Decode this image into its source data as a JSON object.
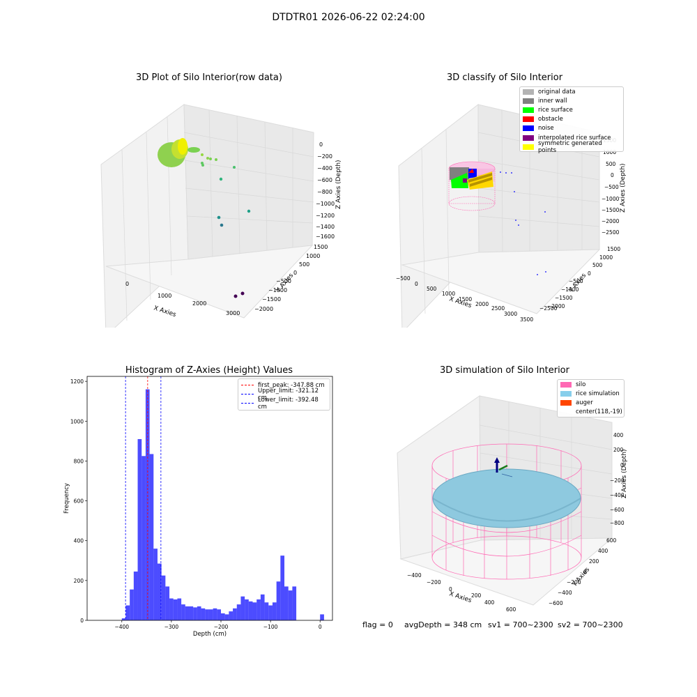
{
  "figure": {
    "suptitle": "DTDTR01 2026-06-22 02:24:00"
  },
  "panels": {
    "p1": {
      "title": "3D Plot of Silo Interior(row data)",
      "xlabel": "X Axies",
      "ylabel": "Y Axies",
      "zlabel": "Z Axies (Depth)",
      "xticks": [
        "0",
        "1000",
        "2000",
        "3000"
      ],
      "yticks": [
        "1500",
        "1000",
        "500",
        "0",
        "−500",
        "−1000",
        "−1500",
        "−2000"
      ],
      "zticks": [
        "0",
        "−200",
        "−400",
        "−600",
        "−800",
        "−1000",
        "−1200",
        "−1400",
        "−1600"
      ]
    },
    "p2": {
      "title": "3D classify of Silo Interior",
      "xlabel": "X Axies",
      "ylabel": "Y Axies",
      "zlabel": "Z Axies (Depth)",
      "xticks": [
        "−500",
        "0",
        "500",
        "1000",
        "1500",
        "2000",
        "2500",
        "3000",
        "3500"
      ],
      "yticks": [
        "1500",
        "1000",
        "500",
        "0",
        "−500",
        "−1000",
        "−1500",
        "−2000",
        "−2500"
      ],
      "zticks": [
        "1500",
        "1000",
        "500",
        "0",
        "−500",
        "−1000",
        "−1500",
        "−2000",
        "−2500"
      ],
      "legend": [
        {
          "label": "original data",
          "color": "#b3b3b3"
        },
        {
          "label": "inner wall",
          "color": "#808080"
        },
        {
          "label": "rice surface",
          "color": "#00ff00"
        },
        {
          "label": "obstacle",
          "color": "#ff0000"
        },
        {
          "label": "noise",
          "color": "#0000ff"
        },
        {
          "label": "interpolated rice surface",
          "color": "#800080"
        },
        {
          "label": "symmetric generated points",
          "color": "#ffff00"
        }
      ]
    },
    "p4": {
      "title": "3D simulation of Silo Interior",
      "xlabel": "X Axies",
      "ylabel": "Y Axies",
      "zlabel": "Z Axies (Depth)",
      "xticks": [
        "−400",
        "−200",
        "0",
        "200",
        "400",
        "600"
      ],
      "yticks": [
        "600",
        "400",
        "200",
        "0",
        "−200",
        "−400",
        "−600"
      ],
      "zticks": [
        "400",
        "200",
        "0",
        "−200",
        "−400",
        "−600",
        "−800"
      ],
      "legend": [
        {
          "label": "silo",
          "color": "#ff69b4"
        },
        {
          "label": "rice simulation",
          "color": "#87ceeb"
        },
        {
          "label": "auger",
          "color": "#ff4500"
        },
        {
          "label": "center(118,-19)",
          "color": ""
        }
      ]
    }
  },
  "footer": {
    "flag": "flag = 0",
    "avg": "avgDepth = 348 cm",
    "sv1": "sv1 = 700~2300",
    "sv2": "sv2 = 700~2300"
  },
  "chart_data": [
    {
      "type": "bar",
      "title": "Histogram of Z-Axies (Height) Values",
      "xlabel": "Depth (cm)",
      "ylabel": "Frequency",
      "xlim": [
        -470,
        25
      ],
      "ylim": [
        0,
        1225
      ],
      "xticks": [
        -400,
        -300,
        -200,
        -100,
        0
      ],
      "yticks": [
        0,
        200,
        400,
        600,
        800,
        1000,
        1200
      ],
      "bin_width": 8,
      "bins": [
        [
          -400,
          10
        ],
        [
          -392,
          75
        ],
        [
          -384,
          155
        ],
        [
          -376,
          245
        ],
        [
          -368,
          910
        ],
        [
          -360,
          825
        ],
        [
          -352,
          1160
        ],
        [
          -344,
          835
        ],
        [
          -336,
          360
        ],
        [
          -328,
          285
        ],
        [
          -320,
          225
        ],
        [
          -312,
          170
        ],
        [
          -304,
          110
        ],
        [
          -296,
          105
        ],
        [
          -288,
          110
        ],
        [
          -280,
          80
        ],
        [
          -272,
          70
        ],
        [
          -264,
          70
        ],
        [
          -256,
          65
        ],
        [
          -248,
          70
        ],
        [
          -240,
          60
        ],
        [
          -232,
          55
        ],
        [
          -224,
          55
        ],
        [
          -216,
          60
        ],
        [
          -208,
          55
        ],
        [
          -200,
          35
        ],
        [
          -192,
          30
        ],
        [
          -184,
          45
        ],
        [
          -176,
          60
        ],
        [
          -168,
          80
        ],
        [
          -160,
          120
        ],
        [
          -152,
          105
        ],
        [
          -144,
          95
        ],
        [
          -136,
          90
        ],
        [
          -128,
          105
        ],
        [
          -120,
          130
        ],
        [
          -112,
          90
        ],
        [
          -104,
          75
        ],
        [
          -96,
          90
        ],
        [
          -88,
          195
        ],
        [
          -80,
          325
        ],
        [
          -72,
          170
        ],
        [
          -64,
          150
        ],
        [
          -56,
          170
        ],
        [
          -48,
          0
        ],
        [
          -40,
          0
        ],
        [
          -32,
          0
        ],
        [
          -24,
          0
        ],
        [
          -16,
          0
        ],
        [
          -8,
          0
        ],
        [
          0,
          30
        ]
      ],
      "lines": [
        {
          "x": -347.88,
          "color": "#ff0000",
          "label": "first_peak: -347.88 cm"
        },
        {
          "x": -321.12,
          "color": "#0000ff",
          "label": "Upper_limit: -321.12 cm"
        },
        {
          "x": -392.48,
          "color": "#0000ff",
          "label": "Lower_limit: -392.48 cm"
        }
      ]
    }
  ]
}
